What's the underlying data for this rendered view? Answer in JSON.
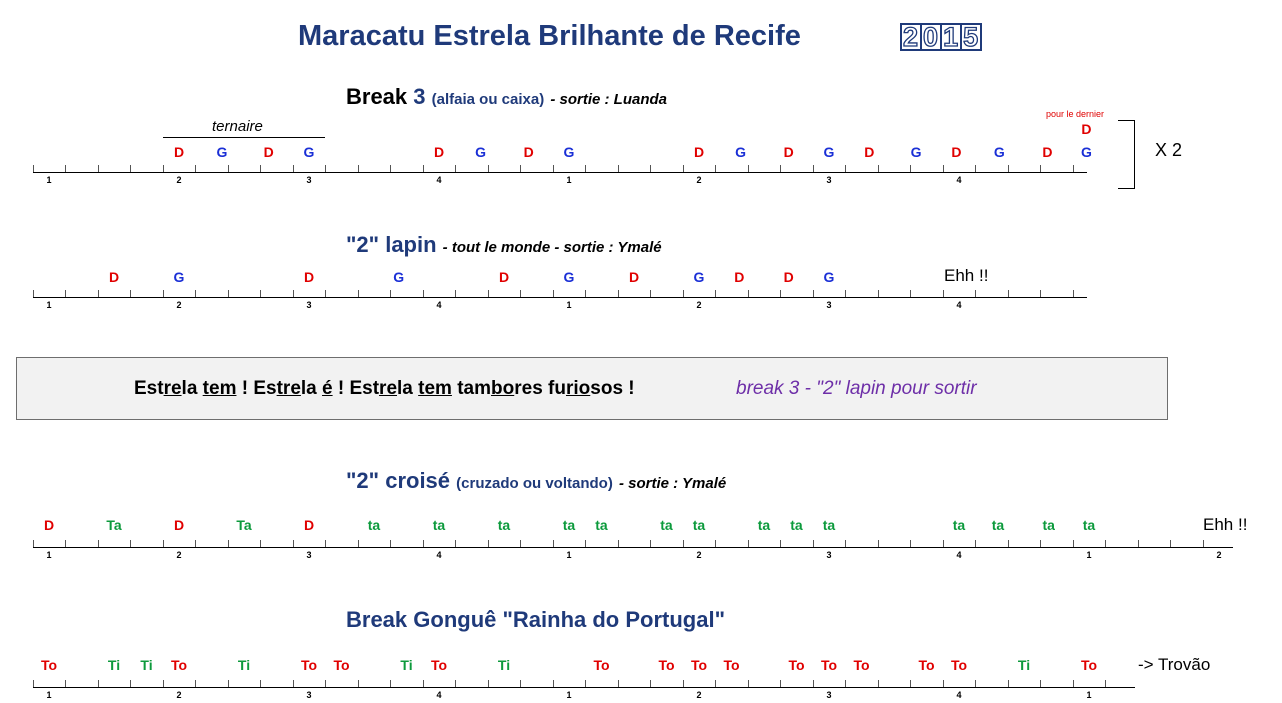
{
  "title": "Maracatu Estrela Brilhante de Recife",
  "year_digits": [
    "2",
    "0",
    "1",
    "5"
  ],
  "section1": {
    "heading_main": "Break",
    "heading_num": "3",
    "heading_paren": "(alfaia ou caixa)",
    "heading_tail": "- sortie :  Luanda",
    "ternaire_label": "ternaire",
    "last_note_label": "pour le dernier",
    "repeat_label": "X 2"
  },
  "section2": {
    "heading_main": "\"2\" lapin",
    "heading_tail": "- tout le monde - sortie : Ymalé",
    "end_label": "Ehh !!"
  },
  "chant": {
    "parts": [
      {
        "t": "Est",
        "u": false
      },
      {
        "t": "re",
        "u": true
      },
      {
        "t": "la ",
        "u": false
      },
      {
        "t": "tem",
        "u": true
      },
      {
        "t": " !  Es",
        "u": false
      },
      {
        "t": "tre",
        "u": true
      },
      {
        "t": "la ",
        "u": false
      },
      {
        "t": "é",
        "u": true
      },
      {
        "t": " !  Est",
        "u": false
      },
      {
        "t": "re",
        "u": true
      },
      {
        "t": "la ",
        "u": false
      },
      {
        "t": "tem",
        "u": true
      },
      {
        "t": " tam",
        "u": false
      },
      {
        "t": "bo",
        "u": true
      },
      {
        "t": "res fu",
        "u": false
      },
      {
        "t": "rio",
        "u": true
      },
      {
        "t": "sos !",
        "u": false
      }
    ],
    "note": "break 3 - \"2\" lapin pour sortir"
  },
  "section3": {
    "heading_main": "\"2\" croisé",
    "heading_paren": "(cruzado ou voltando)",
    "heading_tail": "- sortie : Ymalé",
    "end_label": "Ehh !!"
  },
  "section4": {
    "heading_main": "Break Gonguê \"Rainha do Portugal\"",
    "end_label": "-> Trovão"
  },
  "colors": {
    "D": "#e00000",
    "G": "#1a2fd6",
    "green": "#0c9a3c",
    "heading": "#1f3a7a"
  },
  "timelines": [
    {
      "id": "break3",
      "beat_labels": [
        "1",
        "2",
        "3",
        "4",
        "1",
        "2",
        "3",
        "4"
      ],
      "notes": [
        {
          "pos": 2,
          "t": "D",
          "c": "D"
        },
        {
          "pos": 2.33,
          "t": "G",
          "c": "G"
        },
        {
          "pos": 2.69,
          "t": "D",
          "c": "D"
        },
        {
          "pos": 3,
          "t": "G",
          "c": "G"
        },
        {
          "pos": 4,
          "t": "D",
          "c": "D"
        },
        {
          "pos": 4.32,
          "t": "G",
          "c": "G"
        },
        {
          "pos": 4.69,
          "t": "D",
          "c": "D"
        },
        {
          "pos": 5,
          "t": "G",
          "c": "G"
        },
        {
          "pos": 6,
          "t": "D",
          "c": "D"
        },
        {
          "pos": 6.32,
          "t": "G",
          "c": "G"
        },
        {
          "pos": 6.69,
          "t": "D",
          "c": "D"
        },
        {
          "pos": 7,
          "t": "G",
          "c": "G"
        },
        {
          "pos": 7.31,
          "t": "D",
          "c": "D"
        },
        {
          "pos": 7.67,
          "t": "G",
          "c": "G"
        },
        {
          "pos": 7.98,
          "t": "D",
          "c": "D"
        },
        {
          "pos": 8.31,
          "t": "G",
          "c": "G"
        },
        {
          "pos": 8.68,
          "t": "D",
          "c": "D"
        },
        {
          "pos": 8.98,
          "t": "G",
          "c": "G"
        },
        {
          "pos": 8.98,
          "t": "D",
          "c": "D",
          "row": "above"
        }
      ]
    },
    {
      "id": "lapin",
      "beat_labels": [
        "1",
        "2",
        "3",
        "4",
        "1",
        "2",
        "3",
        "4"
      ],
      "notes": [
        {
          "pos": 1.5,
          "t": "D",
          "c": "D"
        },
        {
          "pos": 2,
          "t": "G",
          "c": "G"
        },
        {
          "pos": 3,
          "t": "D",
          "c": "D"
        },
        {
          "pos": 3.69,
          "t": "G",
          "c": "G"
        },
        {
          "pos": 4.5,
          "t": "D",
          "c": "D"
        },
        {
          "pos": 5,
          "t": "G",
          "c": "G"
        },
        {
          "pos": 5.5,
          "t": "D",
          "c": "D"
        },
        {
          "pos": 6,
          "t": "G",
          "c": "G"
        },
        {
          "pos": 6.31,
          "t": "D",
          "c": "D"
        },
        {
          "pos": 6.69,
          "t": "D",
          "c": "D"
        },
        {
          "pos": 7,
          "t": "G",
          "c": "G"
        }
      ]
    },
    {
      "id": "croise",
      "beat_labels": [
        "1",
        "2",
        "3",
        "4",
        "1",
        "2",
        "3",
        "4",
        "1",
        "2"
      ],
      "notes": [
        {
          "pos": 1,
          "t": "D",
          "c": "D"
        },
        {
          "pos": 1.5,
          "t": "Ta",
          "c": "green"
        },
        {
          "pos": 2,
          "t": "D",
          "c": "D"
        },
        {
          "pos": 2.5,
          "t": "Ta",
          "c": "green"
        },
        {
          "pos": 3,
          "t": "D",
          "c": "D"
        },
        {
          "pos": 3.5,
          "t": "ta",
          "c": "green"
        },
        {
          "pos": 4,
          "t": "ta",
          "c": "green"
        },
        {
          "pos": 4.5,
          "t": "ta",
          "c": "green"
        },
        {
          "pos": 5,
          "t": "ta",
          "c": "green"
        },
        {
          "pos": 5.25,
          "t": "ta",
          "c": "green"
        },
        {
          "pos": 5.75,
          "t": "ta",
          "c": "green"
        },
        {
          "pos": 6,
          "t": "ta",
          "c": "green"
        },
        {
          "pos": 6.5,
          "t": "ta",
          "c": "green"
        },
        {
          "pos": 6.75,
          "t": "ta",
          "c": "green"
        },
        {
          "pos": 7,
          "t": "ta",
          "c": "green"
        },
        {
          "pos": 8,
          "t": "ta",
          "c": "green"
        },
        {
          "pos": 8.3,
          "t": "ta",
          "c": "green"
        },
        {
          "pos": 8.69,
          "t": "ta",
          "c": "green"
        },
        {
          "pos": 9,
          "t": "ta",
          "c": "green"
        }
      ]
    },
    {
      "id": "gongue",
      "beat_labels": [
        "1",
        "2",
        "3",
        "4",
        "1",
        "2",
        "3",
        "4",
        "1"
      ],
      "notes": [
        {
          "pos": 1,
          "t": "To",
          "c": "D"
        },
        {
          "pos": 1.5,
          "t": "Ti",
          "c": "green"
        },
        {
          "pos": 1.75,
          "t": "Ti",
          "c": "green"
        },
        {
          "pos": 2,
          "t": "To",
          "c": "D"
        },
        {
          "pos": 2.5,
          "t": "Ti",
          "c": "green"
        },
        {
          "pos": 3,
          "t": "To",
          "c": "D"
        },
        {
          "pos": 3.25,
          "t": "To",
          "c": "D"
        },
        {
          "pos": 3.75,
          "t": "Ti",
          "c": "green"
        },
        {
          "pos": 4,
          "t": "To",
          "c": "D"
        },
        {
          "pos": 4.5,
          "t": "Ti",
          "c": "green"
        },
        {
          "pos": 5.25,
          "t": "To",
          "c": "D"
        },
        {
          "pos": 5.75,
          "t": "To",
          "c": "D"
        },
        {
          "pos": 6,
          "t": "To",
          "c": "D"
        },
        {
          "pos": 6.25,
          "t": "To",
          "c": "D"
        },
        {
          "pos": 6.75,
          "t": "To",
          "c": "D"
        },
        {
          "pos": 7,
          "t": "To",
          "c": "D"
        },
        {
          "pos": 7.25,
          "t": "To",
          "c": "D"
        },
        {
          "pos": 7.75,
          "t": "To",
          "c": "D"
        },
        {
          "pos": 8,
          "t": "To",
          "c": "D"
        },
        {
          "pos": 8.5,
          "t": "Ti",
          "c": "green"
        },
        {
          "pos": 9,
          "t": "To",
          "c": "D"
        }
      ]
    }
  ]
}
